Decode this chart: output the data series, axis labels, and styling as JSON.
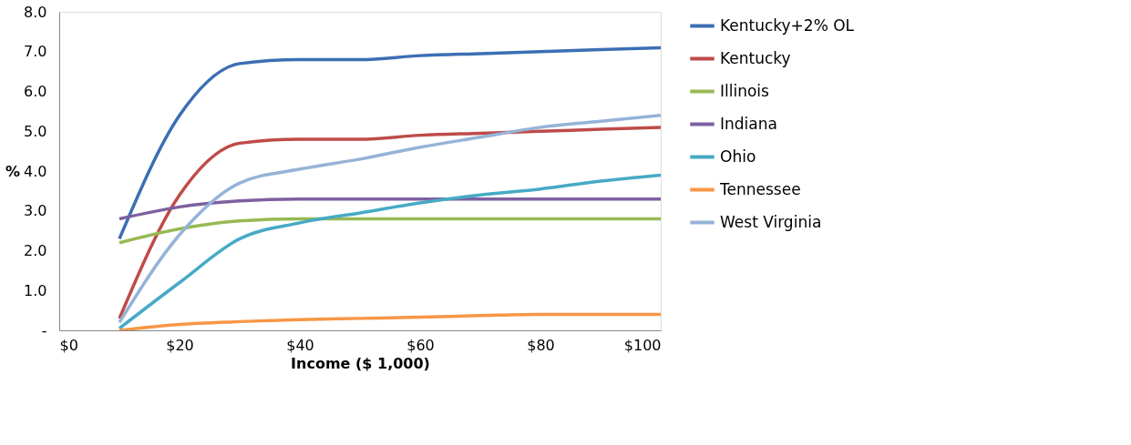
{
  "chart_data": {
    "type": "line",
    "xlabel": "Income ($ 1,000)",
    "ylabel": "%",
    "x": [
      10,
      20,
      30,
      40,
      50,
      60,
      70,
      80,
      90,
      100
    ],
    "xlim": [
      0,
      100
    ],
    "xticks": [
      {
        "value": 0,
        "label": "$0"
      },
      {
        "value": 20,
        "label": "$20"
      },
      {
        "value": 40,
        "label": "$40"
      },
      {
        "value": 60,
        "label": "$60"
      },
      {
        "value": 80,
        "label": "$80"
      },
      {
        "value": 100,
        "label": "$100"
      }
    ],
    "ylim": [
      0,
      8
    ],
    "yticks": [
      {
        "value": 0,
        "label": "-"
      },
      {
        "value": 1,
        "label": "1.0"
      },
      {
        "value": 2,
        "label": "2.0"
      },
      {
        "value": 3,
        "label": "3.0"
      },
      {
        "value": 4,
        "label": "4.0"
      },
      {
        "value": 5,
        "label": "5.0"
      },
      {
        "value": 6,
        "label": "6.0"
      },
      {
        "value": 7,
        "label": "7.0"
      },
      {
        "value": 8,
        "label": "8.0"
      }
    ],
    "grid": false,
    "legend": "right",
    "marker": "none",
    "line_style": "solid",
    "series": [
      {
        "name": "Kentucky+2% OL",
        "color": "#3c6eb4",
        "values": [
          2.3,
          5.4,
          6.7,
          6.8,
          6.8,
          6.9,
          6.95,
          7.0,
          7.05,
          7.1
        ]
      },
      {
        "name": "Kentucky",
        "color": "#be4b48",
        "values": [
          0.3,
          3.4,
          4.7,
          4.8,
          4.8,
          4.9,
          4.95,
          5.0,
          5.05,
          5.1
        ]
      },
      {
        "name": "Illinois",
        "color": "#98b954",
        "values": [
          2.2,
          2.55,
          2.75,
          2.8,
          2.8,
          2.8,
          2.8,
          2.8,
          2.8,
          2.8
        ]
      },
      {
        "name": "Indiana",
        "color": "#7d60a0",
        "values": [
          2.8,
          3.1,
          3.25,
          3.3,
          3.3,
          3.3,
          3.3,
          3.3,
          3.3,
          3.3
        ]
      },
      {
        "name": "Ohio",
        "color": "#46aac5",
        "values": [
          0.05,
          1.2,
          2.3,
          2.7,
          2.95,
          3.2,
          3.4,
          3.55,
          3.75,
          3.9
        ]
      },
      {
        "name": "Tennessee",
        "color": "#f79646",
        "values": [
          0.0,
          0.15,
          0.22,
          0.27,
          0.3,
          0.33,
          0.37,
          0.4,
          0.4,
          0.4
        ]
      },
      {
        "name": "West Virginia",
        "color": "#95b3d7",
        "values": [
          0.2,
          2.4,
          3.7,
          4.05,
          4.3,
          4.6,
          4.85,
          5.1,
          5.25,
          5.4
        ]
      }
    ]
  }
}
